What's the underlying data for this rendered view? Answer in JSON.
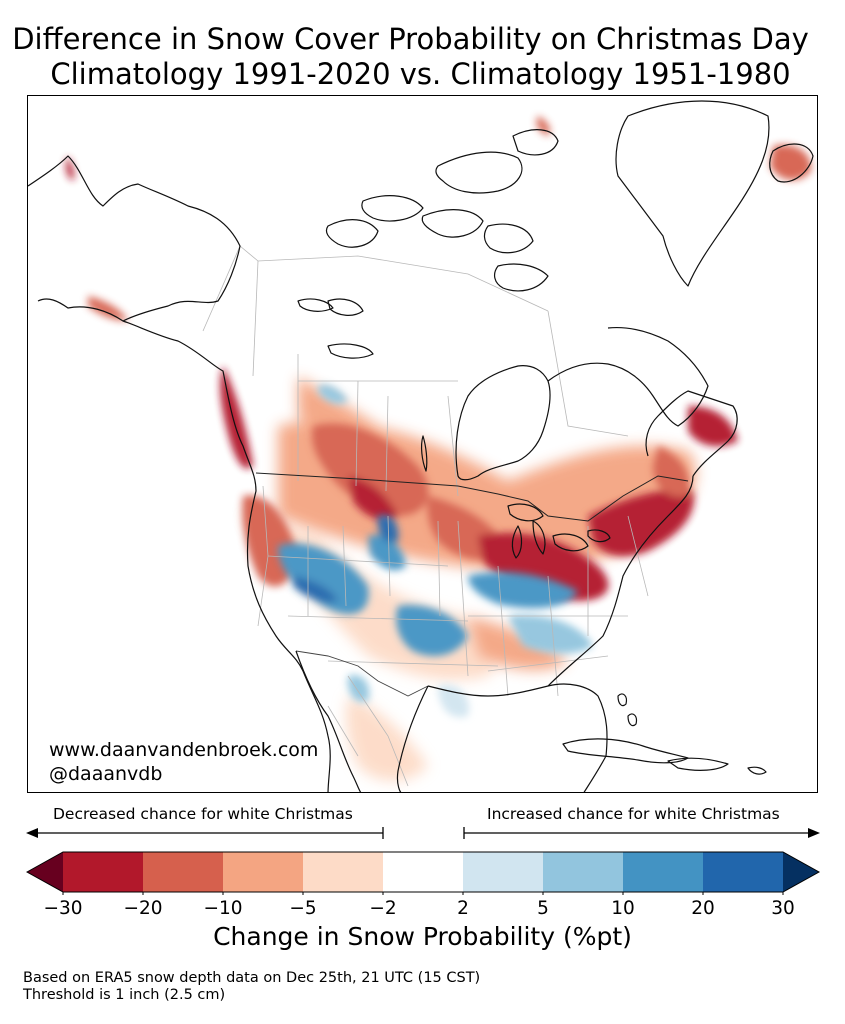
{
  "title": {
    "line1": "Difference in Snow Cover Probability on Christmas Day",
    "line2": "Climatology 1991-2020 vs. Climatology 1951-1980"
  },
  "map": {
    "region": "North America",
    "credit_website": "www.daanvandenbroek.com",
    "credit_handle": "@daaanvdb"
  },
  "arrows": {
    "decreased_label": "Decreased chance for white Christmas",
    "increased_label": "Increased chance for white Christmas"
  },
  "colorbar": {
    "label": "Change in Snow Probability (%pt)",
    "ticks": [
      "−30",
      "−20",
      "−10",
      "−5",
      "−2",
      "2",
      "5",
      "10",
      "20",
      "30"
    ],
    "bins": [
      {
        "from": -30,
        "to": -20,
        "color": "#b2182b"
      },
      {
        "from": -20,
        "to": -10,
        "color": "#d6604d"
      },
      {
        "from": -10,
        "to": -5,
        "color": "#f4a582"
      },
      {
        "from": -5,
        "to": -2,
        "color": "#fddbc7"
      },
      {
        "from": -2,
        "to": 2,
        "color": "#ffffff"
      },
      {
        "from": 2,
        "to": 5,
        "color": "#d1e5f0"
      },
      {
        "from": 5,
        "to": 10,
        "color": "#92c5de"
      },
      {
        "from": 10,
        "to": 20,
        "color": "#4393c3"
      },
      {
        "from": 20,
        "to": 30,
        "color": "#2166ac"
      }
    ],
    "extend_low_color": "#67001f",
    "extend_high_color": "#053061"
  },
  "footnote": {
    "line1": "Based on ERA5 snow depth data on Dec 25th, 21 UTC (15 CST)",
    "line2": "Threshold is 1 inch (2.5 cm)"
  }
}
